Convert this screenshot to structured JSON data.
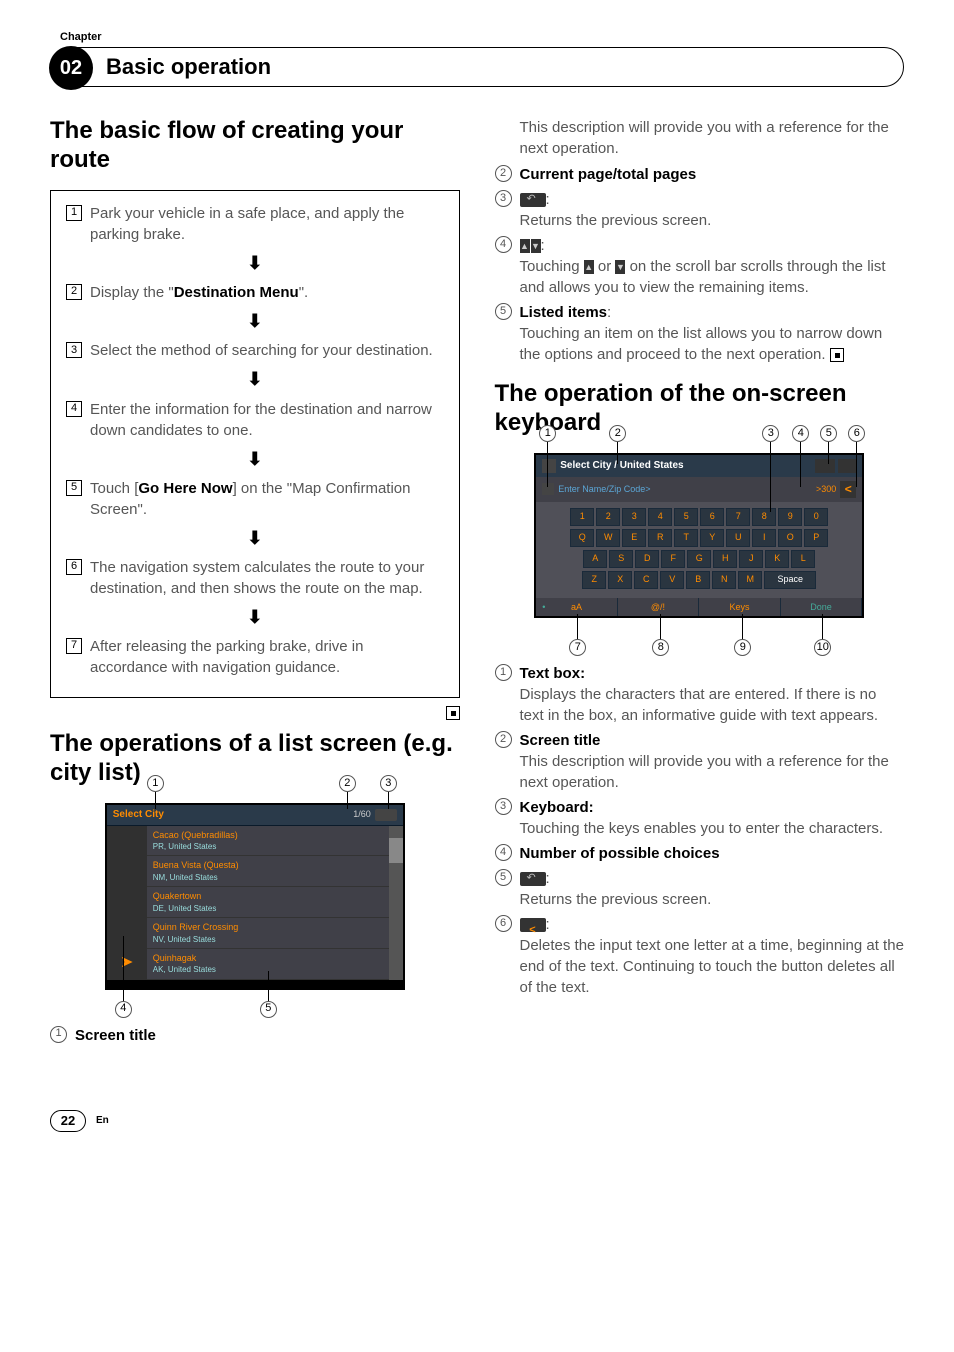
{
  "chapter": {
    "label": "Chapter",
    "number": "02",
    "title": "Basic operation"
  },
  "section1": {
    "heading": "The basic flow of creating your route",
    "steps": [
      {
        "n": "1",
        "text_a": "Park your vehicle in a safe place, and apply the parking brake."
      },
      {
        "n": "2",
        "text_a": "Display the \"",
        "bold": "Destination Menu",
        "text_c": "\"."
      },
      {
        "n": "3",
        "text_a": "Select the method of searching for your destination."
      },
      {
        "n": "4",
        "text_a": "Enter the information for the destination and narrow down candidates to one."
      },
      {
        "n": "5",
        "text_a": "Touch [",
        "bold": "Go Here Now",
        "text_c": "] on the \"Map Confirmation Screen\"."
      },
      {
        "n": "6",
        "text_a": "The navigation system calculates the route to your destination, and then shows the route on the map."
      },
      {
        "n": "7",
        "text_a": "After releasing the parking brake, drive in accordance with navigation guidance."
      }
    ]
  },
  "section2": {
    "heading": "The operations of a list screen (e.g. city list)",
    "screenshot": {
      "title": "Select City",
      "pages": "1/60",
      "items": [
        {
          "name": "Cacao (Quebradillas)",
          "loc": "PR, United States"
        },
        {
          "name": "Buena Vista (Questa)",
          "loc": "NM, United States"
        },
        {
          "name": "Quakertown",
          "loc": "DE, United States"
        },
        {
          "name": "Quinn River Crossing",
          "loc": "NV, United States"
        },
        {
          "name": "Quinhagak",
          "loc": "AK, United States"
        }
      ]
    },
    "callouts": {
      "c1": "1",
      "c2": "2",
      "c3": "3",
      "c4": "4",
      "c5": "5"
    },
    "legend": [
      {
        "n": "1",
        "dt": "Screen title"
      }
    ]
  },
  "col2_top": {
    "intro": "This description will provide you with a reference for the next operation.",
    "items": [
      {
        "n": "2",
        "dt": "Current page/total pages"
      },
      {
        "n": "3",
        "icon": "back",
        "colon": ":",
        "dd": "Returns the previous screen."
      },
      {
        "n": "4",
        "icon": "scroll",
        "colon": ":",
        "dd_a": "Touching ",
        "dd_b": " or ",
        "dd_c": " on the scroll bar scrolls through the list and allows you to view the remaining items."
      },
      {
        "n": "5",
        "dt": "Listed items",
        "colon": ":",
        "dd": "Touching an item on the list allows you to narrow down the options and proceed to the next operation."
      }
    ]
  },
  "section3": {
    "heading": "The operation of the on-screen keyboard",
    "screenshot": {
      "title": "Select City / United States",
      "placeholder": "Enter Name/Zip Code>",
      "count": ">300",
      "row_num": [
        "1",
        "2",
        "3",
        "4",
        "5",
        "6",
        "7",
        "8",
        "9",
        "0"
      ],
      "row_q": [
        "Q",
        "W",
        "E",
        "R",
        "T",
        "Y",
        "U",
        "I",
        "O",
        "P"
      ],
      "row_a": [
        "A",
        "S",
        "D",
        "F",
        "G",
        "H",
        "J",
        "K",
        "L"
      ],
      "row_z": [
        "Z",
        "X",
        "C",
        "V",
        "B",
        "N",
        "M"
      ],
      "space": "Space",
      "bottom": [
        "aA",
        "@/!",
        "Keys",
        "Done"
      ]
    },
    "callouts": {
      "c1": "1",
      "c2": "2",
      "c3": "3",
      "c4": "4",
      "c5": "5",
      "c6": "6",
      "c7": "7",
      "c8": "8",
      "c9": "9",
      "c10": "10"
    },
    "legend": [
      {
        "n": "1",
        "dt": "Text box:",
        "dd": "Displays the characters that are entered. If there is no text in the box, an informative guide with text appears."
      },
      {
        "n": "2",
        "dt": "Screen title",
        "dd": "This description will provide you with a reference for the next operation."
      },
      {
        "n": "3",
        "dt": "Keyboard:",
        "dd": "Touching the keys enables you to enter the characters."
      },
      {
        "n": "4",
        "dt": "Number of possible choices"
      },
      {
        "n": "5",
        "icon": "back",
        "colon": ":",
        "dd": "Returns the previous screen."
      },
      {
        "n": "6",
        "icon": "del",
        "colon": ":",
        "dd": "Deletes the input text one letter at a time, beginning at the end of the text. Continuing to touch the button deletes all of the text."
      }
    ]
  },
  "footer": {
    "page": "22",
    "lang": "En"
  }
}
